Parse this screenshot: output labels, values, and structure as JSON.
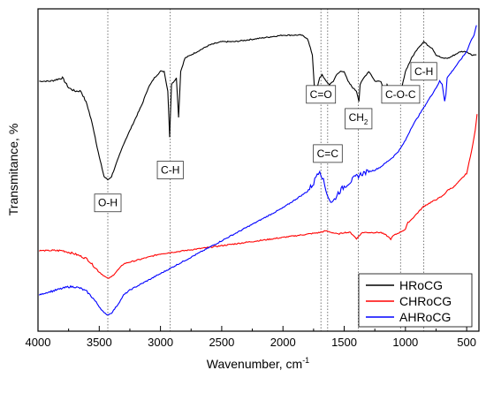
{
  "chart_data": {
    "type": "line",
    "xlabel": "Wavenumber, cm",
    "xlabel_sup": "-1",
    "ylabel": "Transmitance, %",
    "xlim": [
      4000,
      400
    ],
    "x_reversed": true,
    "x_ticks": [
      4000,
      3500,
      3000,
      2500,
      2000,
      1500,
      1000,
      500
    ],
    "y_ticks_shown": false,
    "grid": false,
    "legend_position": "bottom-right",
    "series": [
      {
        "name": "HRoCG",
        "color": "#000000",
        "points": [
          [
            3990,
            73
          ],
          [
            3900,
            73
          ],
          [
            3800,
            74
          ],
          [
            3750,
            71
          ],
          [
            3700,
            70
          ],
          [
            3650,
            70
          ],
          [
            3600,
            66
          ],
          [
            3550,
            59
          ],
          [
            3500,
            50
          ],
          [
            3460,
            44
          ],
          [
            3430,
            43
          ],
          [
            3400,
            44
          ],
          [
            3350,
            49
          ],
          [
            3300,
            54
          ],
          [
            3250,
            58
          ],
          [
            3200,
            62
          ],
          [
            3150,
            66
          ],
          [
            3100,
            71
          ],
          [
            3050,
            74
          ],
          [
            3000,
            76
          ],
          [
            2970,
            76
          ],
          [
            2940,
            70
          ],
          [
            2925,
            56
          ],
          [
            2910,
            72
          ],
          [
            2870,
            74
          ],
          [
            2852,
            62
          ],
          [
            2835,
            76
          ],
          [
            2800,
            80
          ],
          [
            2750,
            81
          ],
          [
            2700,
            82
          ],
          [
            2600,
            84
          ],
          [
            2500,
            85
          ],
          [
            2400,
            85
          ],
          [
            2300,
            85.5
          ],
          [
            2200,
            86
          ],
          [
            2100,
            86.5
          ],
          [
            2000,
            87
          ],
          [
            1900,
            87
          ],
          [
            1850,
            87
          ],
          [
            1800,
            86
          ],
          [
            1760,
            81
          ],
          [
            1740,
            69
          ],
          [
            1720,
            71
          ],
          [
            1700,
            74
          ],
          [
            1680,
            75
          ],
          [
            1650,
            73
          ],
          [
            1620,
            72
          ],
          [
            1590,
            73
          ],
          [
            1560,
            75
          ],
          [
            1530,
            76
          ],
          [
            1500,
            76
          ],
          [
            1470,
            73
          ],
          [
            1430,
            71
          ],
          [
            1400,
            70
          ],
          [
            1380,
            67
          ],
          [
            1370,
            72
          ],
          [
            1340,
            74
          ],
          [
            1320,
            75
          ],
          [
            1300,
            76
          ],
          [
            1280,
            75
          ],
          [
            1250,
            73
          ],
          [
            1220,
            73
          ],
          [
            1200,
            73
          ],
          [
            1170,
            70
          ],
          [
            1150,
            72
          ],
          [
            1100,
            69
          ],
          [
            1060,
            68
          ],
          [
            1030,
            71
          ],
          [
            1000,
            76
          ],
          [
            950,
            80
          ],
          [
            900,
            83
          ],
          [
            875,
            84
          ],
          [
            850,
            85
          ],
          [
            820,
            84
          ],
          [
            780,
            83
          ],
          [
            750,
            81
          ],
          [
            700,
            80
          ],
          [
            650,
            80
          ],
          [
            600,
            81
          ],
          [
            550,
            82
          ],
          [
            500,
            82
          ],
          [
            460,
            81
          ],
          [
            420,
            81
          ]
        ]
      },
      {
        "name": "CHRoCG",
        "color": "#ff0000",
        "points": [
          [
            3990,
            21.5
          ],
          [
            3900,
            21.5
          ],
          [
            3800,
            21.5
          ],
          [
            3700,
            20.5
          ],
          [
            3600,
            19
          ],
          [
            3550,
            17
          ],
          [
            3500,
            15
          ],
          [
            3450,
            13.5
          ],
          [
            3430,
            13
          ],
          [
            3400,
            13.5
          ],
          [
            3350,
            15.5
          ],
          [
            3300,
            17.5
          ],
          [
            3200,
            18.5
          ],
          [
            3100,
            19.5
          ],
          [
            3000,
            20.5
          ],
          [
            2900,
            21
          ],
          [
            2800,
            21.5
          ],
          [
            2700,
            22
          ],
          [
            2600,
            22.5
          ],
          [
            2500,
            23
          ],
          [
            2400,
            23.5
          ],
          [
            2300,
            24
          ],
          [
            2200,
            24.5
          ],
          [
            2100,
            25
          ],
          [
            2000,
            25.5
          ],
          [
            1900,
            26
          ],
          [
            1800,
            26.5
          ],
          [
            1700,
            27
          ],
          [
            1650,
            27.5
          ],
          [
            1600,
            27
          ],
          [
            1550,
            26.5
          ],
          [
            1500,
            27
          ],
          [
            1450,
            27
          ],
          [
            1420,
            26
          ],
          [
            1400,
            25
          ],
          [
            1380,
            26
          ],
          [
            1350,
            27
          ],
          [
            1300,
            27
          ],
          [
            1250,
            27
          ],
          [
            1200,
            27
          ],
          [
            1150,
            26
          ],
          [
            1120,
            25
          ],
          [
            1100,
            26
          ],
          [
            1050,
            27
          ],
          [
            1000,
            28
          ],
          [
            980,
            30
          ],
          [
            950,
            31
          ],
          [
            900,
            33
          ],
          [
            850,
            35
          ],
          [
            800,
            36
          ],
          [
            750,
            37
          ],
          [
            700,
            38
          ],
          [
            650,
            40
          ],
          [
            600,
            41
          ],
          [
            550,
            43
          ],
          [
            500,
            45
          ],
          [
            470,
            50
          ],
          [
            450,
            54
          ],
          [
            430,
            58
          ],
          [
            415,
            63
          ]
        ]
      },
      {
        "name": "AHRoCG",
        "color": "#0000ff",
        "points": [
          [
            3990,
            8
          ],
          [
            3950,
            8.5
          ],
          [
            3900,
            9
          ],
          [
            3850,
            9.5
          ],
          [
            3800,
            10
          ],
          [
            3750,
            10.5
          ],
          [
            3700,
            10.5
          ],
          [
            3650,
            10
          ],
          [
            3600,
            9
          ],
          [
            3550,
            7
          ],
          [
            3500,
            4.5
          ],
          [
            3460,
            2.5
          ],
          [
            3430,
            2
          ],
          [
            3400,
            2.5
          ],
          [
            3350,
            5
          ],
          [
            3300,
            8
          ],
          [
            3250,
            9.5
          ],
          [
            3200,
            10.5
          ],
          [
            3100,
            12.5
          ],
          [
            3000,
            14.5
          ],
          [
            2900,
            16.5
          ],
          [
            2800,
            18.5
          ],
          [
            2700,
            20.5
          ],
          [
            2600,
            22.5
          ],
          [
            2500,
            24.5
          ],
          [
            2400,
            26.5
          ],
          [
            2300,
            28.5
          ],
          [
            2200,
            30.5
          ],
          [
            2100,
            32.5
          ],
          [
            2000,
            34.5
          ],
          [
            1900,
            37
          ],
          [
            1800,
            39.5
          ],
          [
            1750,
            42
          ],
          [
            1720,
            45
          ],
          [
            1700,
            46
          ],
          [
            1680,
            44
          ],
          [
            1650,
            40
          ],
          [
            1620,
            37
          ],
          [
            1600,
            36
          ],
          [
            1580,
            37
          ],
          [
            1550,
            39
          ],
          [
            1500,
            41
          ],
          [
            1450,
            42.5
          ],
          [
            1400,
            44
          ],
          [
            1350,
            45
          ],
          [
            1300,
            45.5
          ],
          [
            1250,
            46
          ],
          [
            1200,
            47
          ],
          [
            1150,
            48.5
          ],
          [
            1100,
            50
          ],
          [
            1050,
            52
          ],
          [
            1000,
            55
          ],
          [
            950,
            59
          ],
          [
            900,
            62
          ],
          [
            850,
            65
          ],
          [
            800,
            68
          ],
          [
            750,
            71
          ],
          [
            720,
            73
          ],
          [
            700,
            72
          ],
          [
            680,
            67
          ],
          [
            670,
            69
          ],
          [
            660,
            74
          ],
          [
            620,
            76
          ],
          [
            580,
            78
          ],
          [
            540,
            80
          ],
          [
            500,
            82
          ],
          [
            470,
            85
          ],
          [
            440,
            87
          ],
          [
            420,
            90
          ]
        ]
      }
    ],
    "reference_lines": [
      {
        "x": 3430,
        "label": "O-H",
        "label_y": 36
      },
      {
        "x": 2920,
        "label": "C-H",
        "label_y": 46
      },
      {
        "x": 1690,
        "label": "C=O",
        "label_y": 69
      },
      {
        "x": 1635,
        "label": "C=C",
        "label_y": 51
      },
      {
        "x": 1385,
        "label": "CH",
        "label_sub": "2",
        "label_y": 62
      },
      {
        "x": 1040,
        "label": "C-O-C",
        "label_y": 69
      },
      {
        "x": 850,
        "label": "C-H",
        "label_y": 76
      }
    ],
    "y_range": [
      -3,
      95
    ]
  }
}
